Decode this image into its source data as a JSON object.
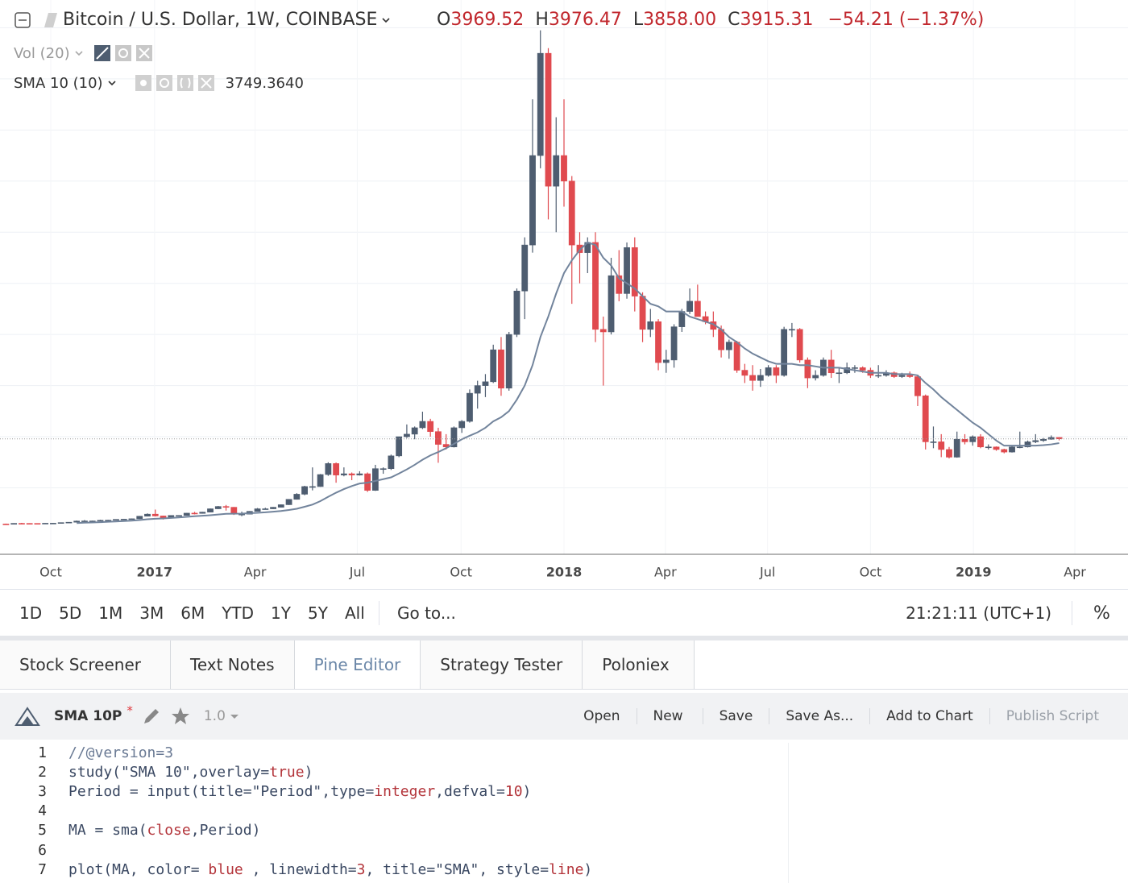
{
  "header": {
    "symbol_title": "Bitcoin / U.S. Dollar, 1W, COINBASE",
    "ohlc": [
      {
        "label": "O",
        "value": "3969.52"
      },
      {
        "label": "H",
        "value": "3976.47"
      },
      {
        "label": "L",
        "value": "3858.00"
      },
      {
        "label": "C",
        "value": "3915.31"
      }
    ],
    "change": "−54.21 (−1.37%)",
    "volume_study": "Vol (20)",
    "sma_study": "SMA 10 (10)",
    "sma_value": "3749.3640"
  },
  "chart_data": {
    "type": "candlestick",
    "open": [
      585,
      575,
      610,
      608,
      607,
      600,
      615,
      617,
      640,
      655,
      700,
      705,
      705,
      730,
      735,
      765,
      775,
      790,
      890,
      970,
      900,
      820,
      920,
      920,
      1010,
      1000,
      1050,
      1180,
      1270,
      1240,
      970,
      970,
      1080,
      1180,
      1180,
      1240,
      1340,
      1550,
      1750,
      2050,
      2050,
      2520,
      2950,
      2500,
      2550,
      2500,
      2550,
      1900,
      2750,
      2750,
      3250,
      4000,
      4100,
      4350,
      4600,
      4200,
      3700,
      3600,
      4350,
      4600,
      5700,
      6000,
      6150,
      7400,
      5900,
      8000,
      9700,
      11500,
      15000,
      19000,
      13800,
      15000,
      14000,
      11500,
      11200,
      11600,
      8200,
      8100,
      10300,
      9600,
      11400,
      9500,
      8200,
      8500,
      6900,
      7000,
      8300,
      8900,
      9300,
      8700,
      8500,
      8200,
      7400,
      7700,
      6600,
      6400,
      6200,
      6400,
      6700,
      6400,
      8200,
      8200,
      7000,
      6300,
      6400,
      7000,
      6500,
      6500,
      6700,
      6700,
      6600,
      6400,
      6400,
      6500,
      6350,
      6400,
      6350,
      5600,
      3800,
      3800,
      3500,
      3200,
      3900,
      3800,
      4000,
      3600,
      3600,
      3500,
      3400,
      3600,
      3600,
      3800,
      3850,
      3900,
      3969.52
    ],
    "high": [
      600,
      615,
      630,
      615,
      610,
      620,
      625,
      645,
      660,
      720,
      740,
      715,
      750,
      745,
      770,
      780,
      800,
      900,
      1000,
      1150,
      910,
      925,
      930,
      1015,
      1060,
      1060,
      1190,
      1290,
      1330,
      1250,
      1070,
      1090,
      1210,
      1220,
      1250,
      1350,
      1560,
      1790,
      2080,
      2800,
      2540,
      3000,
      2990,
      2800,
      2600,
      2650,
      2600,
      2900,
      2800,
      3300,
      4000,
      4480,
      4400,
      4980,
      4700,
      4350,
      4100,
      4400,
      4650,
      5850,
      6190,
      6450,
      7600,
      7900,
      8100,
      9800,
      11800,
      17200,
      19900,
      19200,
      16500,
      17200,
      14200,
      12000,
      11800,
      12000,
      8700,
      11000,
      11300,
      11600,
      11800,
      9650,
      9000,
      8600,
      7400,
      8400,
      9000,
      9800,
      9950,
      8900,
      8900,
      8350,
      7800,
      7750,
      6850,
      6800,
      6650,
      6800,
      6800,
      8300,
      8450,
      8250,
      7100,
      6600,
      7100,
      7400,
      6700,
      6900,
      6800,
      6750,
      6700,
      6800,
      6600,
      6550,
      6500,
      6550,
      6400,
      5650,
      4400,
      4100,
      3600,
      4200,
      4100,
      4050,
      4100,
      3700,
      3620,
      3530,
      3650,
      4200,
      3850,
      4100,
      3950,
      4050,
      3976.47
    ],
    "low": [
      570,
      570,
      600,
      600,
      590,
      595,
      610,
      615,
      630,
      650,
      690,
      700,
      700,
      720,
      730,
      750,
      770,
      785,
      880,
      880,
      760,
      810,
      880,
      915,
      960,
      990,
      1040,
      1170,
      1110,
      940,
      890,
      960,
      1070,
      1160,
      1170,
      1230,
      1330,
      1540,
      1710,
      1900,
      2040,
      2470,
      2200,
      2450,
      2300,
      2480,
      1840,
      1880,
      2550,
      2700,
      3200,
      3950,
      3900,
      4300,
      4000,
      2980,
      3500,
      3580,
      4150,
      4550,
      5100,
      5550,
      6100,
      5600,
      5800,
      7900,
      8600,
      11200,
      14500,
      12500,
      12000,
      13000,
      9200,
      10000,
      10400,
      7700,
      6000,
      8000,
      9300,
      9400,
      8900,
      7700,
      7900,
      6600,
      6500,
      6700,
      8100,
      8800,
      8700,
      8400,
      7900,
      7100,
      7050,
      6500,
      6100,
      5800,
      5950,
      6350,
      6100,
      6350,
      7900,
      6900,
      5900,
      6200,
      6350,
      6300,
      6100,
      6450,
      6500,
      6500,
      6300,
      6300,
      6350,
      6300,
      6300,
      6300,
      5200,
      3500,
      3550,
      3200,
      3150,
      3180,
      3700,
      3650,
      3550,
      3500,
      3450,
      3350,
      3380,
      3550,
      3580,
      3750,
      3800,
      3880,
      3858
    ],
    "close": [
      575,
      610,
      608,
      607,
      600,
      615,
      617,
      640,
      655,
      700,
      705,
      705,
      730,
      735,
      765,
      775,
      790,
      890,
      970,
      900,
      820,
      920,
      920,
      1010,
      1000,
      1050,
      1180,
      1270,
      1240,
      970,
      970,
      1080,
      1180,
      1180,
      1240,
      1340,
      1550,
      1750,
      2050,
      2050,
      2520,
      2950,
      2500,
      2550,
      2500,
      2550,
      1900,
      2750,
      2750,
      3250,
      4000,
      4100,
      4350,
      4600,
      4200,
      3700,
      3600,
      4350,
      4600,
      5700,
      6000,
      6150,
      7400,
      5900,
      8000,
      9700,
      11500,
      15000,
      19000,
      13800,
      15000,
      14000,
      11500,
      11200,
      11600,
      8200,
      8100,
      10300,
      9600,
      11400,
      9500,
      8200,
      8500,
      6900,
      7000,
      8300,
      8900,
      9300,
      8700,
      8500,
      8200,
      7400,
      7700,
      6600,
      6400,
      6200,
      6400,
      6700,
      6400,
      8200,
      8200,
      7000,
      6300,
      6400,
      7000,
      6500,
      6500,
      6700,
      6700,
      6600,
      6400,
      6400,
      6500,
      6350,
      6400,
      6350,
      5600,
      3800,
      3800,
      3500,
      3200,
      3900,
      3800,
      4000,
      3600,
      3600,
      3500,
      3400,
      3600,
      3600,
      3800,
      3850,
      3900,
      3969.52,
      3915.31
    ],
    "up_color": "#4e5d70",
    "down_color": "#e04a4f",
    "overlay": {
      "color": "#72849c",
      "values": [
        null,
        null,
        null,
        null,
        null,
        null,
        null,
        null,
        null,
        623,
        636,
        646,
        658,
        671,
        686,
        702,
        717,
        741,
        772,
        792,
        804,
        823,
        842,
        866,
        889,
        908,
        929,
        956,
        982,
        986,
        993,
        1009,
        1025,
        1042,
        1066,
        1095,
        1132,
        1180,
        1260,
        1343,
        1480,
        1650,
        1810,
        1950,
        2070,
        2170,
        2200,
        2270,
        2340,
        2410,
        2560,
        2720,
        2900,
        3100,
        3270,
        3400,
        3550,
        3720,
        3900,
        4040,
        4170,
        4350,
        4600,
        4760,
        5000,
        5450,
        6000,
        6800,
        7900,
        8700,
        9600,
        10400,
        10900,
        11300,
        11600,
        11500,
        11000,
        10700,
        10200,
        10000,
        9800,
        9500,
        9200,
        9100,
        8900,
        8900,
        8900,
        8700,
        8600,
        8500,
        8400,
        8200,
        7900,
        7700,
        7450,
        7250,
        7100,
        6950,
        6850,
        6850,
        6850,
        6800,
        6800,
        6750,
        6700,
        6700,
        6700,
        6650,
        6600,
        6550,
        6500,
        6500,
        6500,
        6450,
        6450,
        6450,
        6400,
        6100,
        5850,
        5550,
        5300,
        5050,
        4800,
        4550,
        4350,
        4100,
        3850,
        3650,
        3650,
        3650,
        3650,
        3650,
        3670,
        3700,
        3749.364
      ]
    },
    "xlim": [
      -0.76,
      142.76
    ],
    "ylim": [
      -600,
      21085
    ],
    "xticks": [
      {
        "value": 5.7,
        "label": "Oct"
      },
      {
        "value": 18.9,
        "label": "2017",
        "bold": true
      },
      {
        "value": 31.7,
        "label": "Apr"
      },
      {
        "value": 44.7,
        "label": "Jul"
      },
      {
        "value": 57.9,
        "label": "Oct"
      },
      {
        "value": 71,
        "label": "2018",
        "bold": true
      },
      {
        "value": 83.9,
        "label": "Apr"
      },
      {
        "value": 96.9,
        "label": "Jul"
      },
      {
        "value": 110,
        "label": "Oct"
      },
      {
        "value": 123.1,
        "label": "2019",
        "bold": true
      },
      {
        "value": 136,
        "label": "Apr"
      }
    ],
    "yticks": [
      2000,
      4000,
      6000,
      8000,
      10000,
      12000,
      14000,
      16000,
      18000,
      20000
    ],
    "grid": true,
    "last_price_line": true
  },
  "toolbar": {
    "timeframes": [
      "1D",
      "5D",
      "1M",
      "3M",
      "6M",
      "YTD",
      "1Y",
      "5Y",
      "All"
    ],
    "goto": "Go to...",
    "clock": "21:21:11 (UTC+1)",
    "percent": "%"
  },
  "tabs": [
    {
      "label": "Stock Screener",
      "menu": true
    },
    {
      "label": "Text Notes"
    },
    {
      "label": "Pine Editor",
      "active": true
    },
    {
      "label": "Strategy Tester"
    },
    {
      "label": "Poloniex",
      "dot": true
    }
  ],
  "editor": {
    "script_name": "SMA 10P",
    "modified_mark": "*",
    "version": "1.0",
    "actions": [
      {
        "label": "Open"
      },
      {
        "label": "New",
        "menu": true
      },
      {
        "label": "Save"
      },
      {
        "label": "Save As..."
      },
      {
        "label": "Add to Chart"
      },
      {
        "label": "Publish Script",
        "disabled": true
      }
    ],
    "lines": [
      {
        "number": "1",
        "tokens": [
          {
            "text": "//@version=3",
            "color": "#6a7a94"
          }
        ]
      },
      {
        "number": "2",
        "tokens": [
          {
            "text": "study(\"SMA 10\",overlay=",
            "color": "#3a4862"
          },
          {
            "text": "true",
            "color": "#b3343a"
          },
          {
            "text": ")",
            "color": "#3a4862"
          }
        ]
      },
      {
        "number": "3",
        "tokens": [
          {
            "text": "Period = input(title=\"Period\",type=",
            "color": "#3a4862"
          },
          {
            "text": "integer",
            "color": "#b3343a"
          },
          {
            "text": ",defval=",
            "color": "#3a4862"
          },
          {
            "text": "10",
            "color": "#b3343a"
          },
          {
            "text": ")",
            "color": "#3a4862"
          }
        ]
      },
      {
        "number": "4",
        "tokens": []
      },
      {
        "number": "5",
        "tokens": [
          {
            "text": "MA = sma(",
            "color": "#3a4862"
          },
          {
            "text": "close",
            "color": "#b3343a"
          },
          {
            "text": ",Period)",
            "color": "#3a4862"
          }
        ]
      },
      {
        "number": "6",
        "tokens": []
      },
      {
        "number": "7",
        "tokens": [
          {
            "text": "plot(MA, color= ",
            "color": "#3a4862"
          },
          {
            "text": "blue",
            "color": "#b3343a"
          },
          {
            "text": " , linewidth=",
            "color": "#3a4862"
          },
          {
            "text": "3",
            "color": "#b3343a"
          },
          {
            "text": ", title=\"SMA\", style=",
            "color": "#3a4862"
          },
          {
            "text": "line",
            "color": "#b3343a"
          },
          {
            "text": ")",
            "color": "#3a4862"
          }
        ]
      }
    ]
  }
}
